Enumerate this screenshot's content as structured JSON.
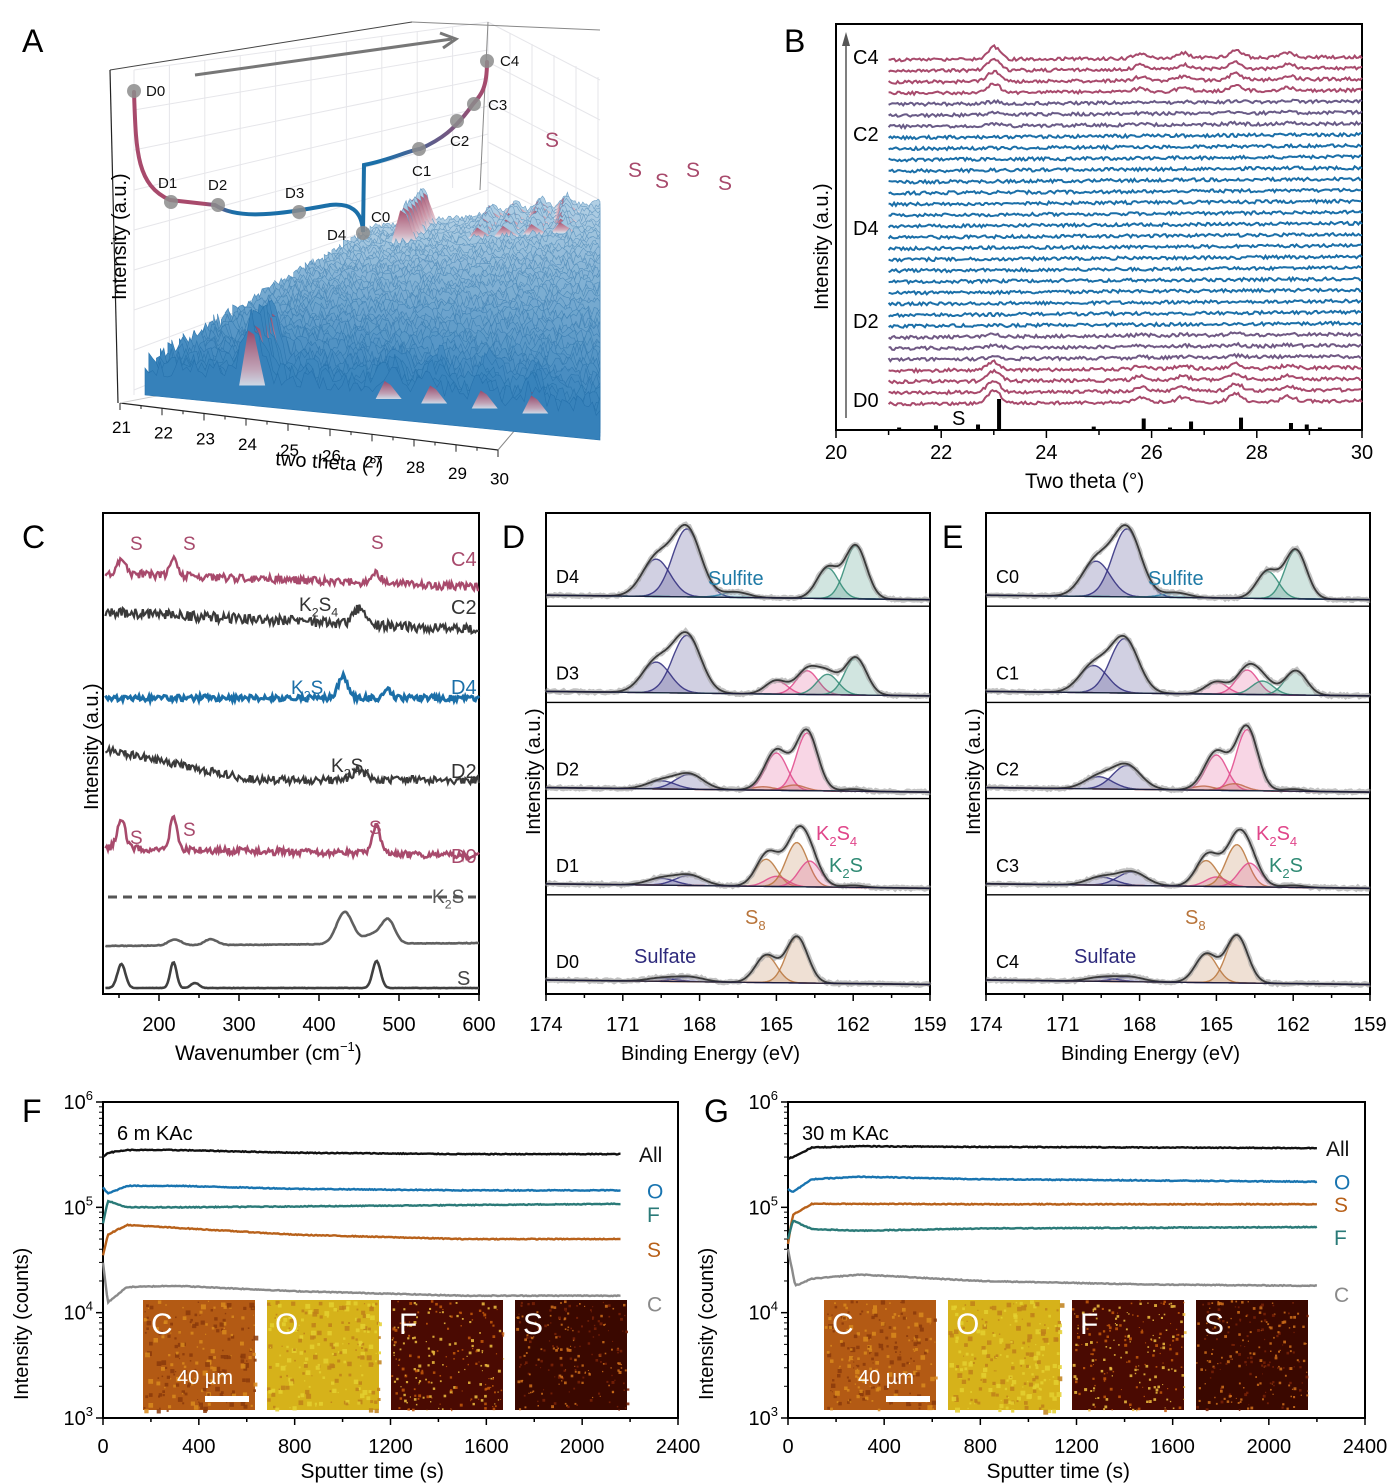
{
  "colors": {
    "charge_pink": "#a84a6c",
    "discharge_blue": "#1b6fa8",
    "sulfate_navy": "#2e2a7c",
    "sulfite_blue": "#1f7aa6",
    "k2s4_pink": "#e0468a",
    "k2s_green": "#2f8a74",
    "s8_orange": "#b8743a",
    "all_black": "#111111",
    "o_blue": "#1874b0",
    "f_teal": "#2a7a78",
    "s_orange": "#b8611a",
    "c_gray": "#8a8a8a"
  },
  "chart_data": [
    {
      "panel": "A",
      "type": "area",
      "title": "",
      "xlabel": "two theta (°)",
      "ylabel": "Intensity (a.u.)",
      "xlim": [
        21,
        30
      ],
      "x_ticks": [
        "21",
        "22",
        "23",
        "24",
        "25",
        "26",
        "27",
        "28",
        "29",
        "30"
      ],
      "inset_curve_points": [
        "D0",
        "D1",
        "D2",
        "D3",
        "D4",
        "C0",
        "C1",
        "C2",
        "C3",
        "C4"
      ],
      "peak_labels": [
        "S",
        "S",
        "S",
        "S",
        "S"
      ],
      "peak_positions": [
        23.1,
        25.8,
        26.7,
        27.7,
        28.7
      ],
      "arrow": "time progression"
    },
    {
      "panel": "B",
      "type": "line",
      "xlabel": "Two theta (°)",
      "ylabel": "Intensity (a.u.)",
      "xlim": [
        20,
        30
      ],
      "x_ticks": [
        "20",
        "22",
        "24",
        "26",
        "28",
        "30"
      ],
      "series_labels": [
        "D0",
        "D2",
        "D4",
        "C2",
        "C4"
      ],
      "stack_count": 32,
      "peak_positions": [
        23.0,
        25.8,
        26.6,
        27.6,
        28.6
      ],
      "reference": {
        "name": "S",
        "positions": [
          21.2,
          21.9,
          22.7,
          23.1,
          24.9,
          25.85,
          26.35,
          26.75,
          27.7,
          28.65,
          28.95,
          29.2
        ],
        "heights": [
          0.05,
          0.12,
          0.15,
          1.0,
          0.08,
          0.35,
          0.05,
          0.25,
          0.38,
          0.2,
          0.15,
          0.05
        ]
      }
    },
    {
      "panel": "C",
      "type": "line",
      "xlabel": "Wavenumber (cm⁻¹)",
      "ylabel": "Intensity (a.u.)",
      "xlim": [
        130,
        600
      ],
      "x_ticks": [
        "200",
        "300",
        "400",
        "500",
        "600"
      ],
      "series": [
        {
          "name": "C4",
          "color": "charge_pink",
          "peaks": [
            153,
            218,
            472
          ],
          "annotations": [
            "S",
            "S",
            "S"
          ]
        },
        {
          "name": "C2",
          "color": "gray",
          "peaks": [
            450
          ],
          "annotations": [
            "K2S4"
          ]
        },
        {
          "name": "D4",
          "color": "discharge_blue",
          "peaks": [
            430,
            487
          ],
          "annotations": [
            "K2S"
          ]
        },
        {
          "name": "D2",
          "color": "gray",
          "peaks": [
            450
          ],
          "annotations": [
            "K2S4"
          ]
        },
        {
          "name": "D0",
          "color": "charge_pink",
          "peaks": [
            153,
            218,
            472
          ],
          "annotations": [
            "S",
            "S",
            "S"
          ]
        },
        {
          "name": "K2S",
          "color": "gray",
          "peaks": [
            220,
            265,
            432,
            487
          ],
          "reference": true
        },
        {
          "name": "S",
          "color": "gray",
          "peaks": [
            153,
            218,
            245,
            472
          ],
          "reference": true
        }
      ]
    },
    {
      "panel": "D",
      "type": "line",
      "xlabel": "Binding Energy (eV)",
      "ylabel": "Intensity (a.u.)",
      "xlim": [
        174,
        159
      ],
      "x_ticks": [
        "174",
        "171",
        "168",
        "165",
        "162",
        "159"
      ],
      "annotations": [
        "Sulfite",
        "K2S4",
        "K2S",
        "S8",
        "Sulfate"
      ],
      "series": [
        {
          "name": "D4",
          "components": [
            {
              "species": "sulfate",
              "center": 169.7,
              "height": 0.55
            },
            {
              "species": "sulfate",
              "center": 168.5,
              "height": 1.0
            },
            {
              "species": "sulfite",
              "center": 166.6,
              "height": 0.08
            },
            {
              "species": "K2S",
              "center": 163.0,
              "height": 0.45
            },
            {
              "species": "K2S",
              "center": 161.9,
              "height": 0.78
            }
          ]
        },
        {
          "name": "D3",
          "components": [
            {
              "species": "sulfate",
              "center": 169.7,
              "height": 0.45
            },
            {
              "species": "sulfate",
              "center": 168.5,
              "height": 0.85
            },
            {
              "species": "K2S4",
              "center": 165.0,
              "height": 0.2
            },
            {
              "species": "K2S4",
              "center": 163.8,
              "height": 0.35
            },
            {
              "species": "K2S",
              "center": 163.0,
              "height": 0.3
            },
            {
              "species": "K2S",
              "center": 161.9,
              "height": 0.55
            }
          ]
        },
        {
          "name": "D2",
          "components": [
            {
              "species": "sulfate",
              "center": 169.5,
              "height": 0.12
            },
            {
              "species": "sulfate",
              "center": 168.4,
              "height": 0.22
            },
            {
              "species": "S8",
              "center": 165.5,
              "height": 0.05
            },
            {
              "species": "K2S4",
              "center": 165.0,
              "height": 0.55
            },
            {
              "species": "S8",
              "center": 164.3,
              "height": 0.08
            },
            {
              "species": "K2S4",
              "center": 163.8,
              "height": 0.85
            },
            {
              "species": "K2S",
              "center": 162.0,
              "height": 0.03
            }
          ]
        },
        {
          "name": "D1",
          "components": [
            {
              "species": "sulfate",
              "center": 169.5,
              "height": 0.1
            },
            {
              "species": "sulfate",
              "center": 168.4,
              "height": 0.15
            },
            {
              "species": "S8",
              "center": 165.4,
              "height": 0.4
            },
            {
              "species": "K2S4",
              "center": 165.0,
              "height": 0.15
            },
            {
              "species": "S8",
              "center": 164.2,
              "height": 0.65
            },
            {
              "species": "K2S4",
              "center": 163.7,
              "height": 0.38
            },
            {
              "species": "K2S",
              "center": 162.0,
              "height": 0.03
            }
          ]
        },
        {
          "name": "D0",
          "components": [
            {
              "species": "sulfate",
              "center": 169.5,
              "height": 0.05
            },
            {
              "species": "sulfate",
              "center": 168.4,
              "height": 0.07
            },
            {
              "species": "S8",
              "center": 165.4,
              "height": 0.4
            },
            {
              "species": "S8",
              "center": 164.2,
              "height": 0.68
            }
          ]
        }
      ]
    },
    {
      "panel": "E",
      "type": "line",
      "xlabel": "Binding Energy (eV)",
      "ylabel": "Intensity (a.u.)",
      "xlim": [
        174,
        159
      ],
      "x_ticks": [
        "174",
        "171",
        "168",
        "165",
        "162",
        "159"
      ],
      "annotations": [
        "Sulfite",
        "K2S4",
        "K2S",
        "S8",
        "Sulfate"
      ],
      "series": [
        {
          "name": "C0",
          "components": [
            {
              "species": "sulfate",
              "center": 169.7,
              "height": 0.52
            },
            {
              "species": "sulfate",
              "center": 168.5,
              "height": 1.0
            },
            {
              "species": "sulfite",
              "center": 166.6,
              "height": 0.07
            },
            {
              "species": "K2S",
              "center": 163.0,
              "height": 0.4
            },
            {
              "species": "K2S",
              "center": 161.9,
              "height": 0.72
            }
          ]
        },
        {
          "name": "C1",
          "components": [
            {
              "species": "sulfate",
              "center": 169.8,
              "height": 0.4
            },
            {
              "species": "sulfate",
              "center": 168.6,
              "height": 0.8
            },
            {
              "species": "K2S4",
              "center": 165.0,
              "height": 0.18
            },
            {
              "species": "K2S4",
              "center": 163.8,
              "height": 0.36
            },
            {
              "species": "K2S",
              "center": 163.2,
              "height": 0.2
            },
            {
              "species": "K2S",
              "center": 161.9,
              "height": 0.36
            }
          ]
        },
        {
          "name": "C2",
          "components": [
            {
              "species": "sulfate",
              "center": 169.6,
              "height": 0.18
            },
            {
              "species": "sulfate",
              "center": 168.5,
              "height": 0.35
            },
            {
              "species": "S8",
              "center": 165.5,
              "height": 0.06
            },
            {
              "species": "K2S4",
              "center": 165.0,
              "height": 0.52
            },
            {
              "species": "S8",
              "center": 164.3,
              "height": 0.1
            },
            {
              "species": "K2S4",
              "center": 163.8,
              "height": 0.9
            },
            {
              "species": "K2S",
              "center": 162.0,
              "height": 0.03
            }
          ]
        },
        {
          "name": "C3",
          "components": [
            {
              "species": "sulfate",
              "center": 169.5,
              "height": 0.12
            },
            {
              "species": "sulfate",
              "center": 168.3,
              "height": 0.2
            },
            {
              "species": "S8",
              "center": 165.4,
              "height": 0.38
            },
            {
              "species": "K2S4",
              "center": 165.0,
              "height": 0.14
            },
            {
              "species": "S8",
              "center": 164.2,
              "height": 0.62
            },
            {
              "species": "K2S4",
              "center": 163.7,
              "height": 0.35
            },
            {
              "species": "K2S",
              "center": 162.0,
              "height": 0.03
            }
          ]
        },
        {
          "name": "C4",
          "components": [
            {
              "species": "sulfate",
              "center": 169.5,
              "height": 0.06
            },
            {
              "species": "sulfate",
              "center": 168.4,
              "height": 0.07
            },
            {
              "species": "S8",
              "center": 165.4,
              "height": 0.42
            },
            {
              "species": "S8",
              "center": 164.2,
              "height": 0.7
            }
          ]
        }
      ]
    },
    {
      "panel": "F",
      "type": "line",
      "title": "6 m KAc",
      "xlabel": "Sputter time (s)",
      "ylabel": "Intensity (counts)",
      "xlim": [
        0,
        2400
      ],
      "ylim": [
        1000,
        1000000
      ],
      "yscale": "log",
      "x_ticks": [
        "0",
        "400",
        "800",
        "1200",
        "1600",
        "2000",
        "2400"
      ],
      "y_ticks": [
        "10³",
        "10⁴",
        "10⁵",
        "10⁶"
      ],
      "series": [
        {
          "name": "All",
          "x": [
            0,
            20,
            100,
            300,
            800,
            1500,
            2160
          ],
          "y": [
            300000,
            330000,
            350000,
            350000,
            330000,
            320000,
            320000
          ]
        },
        {
          "name": "O",
          "x": [
            0,
            20,
            100,
            300,
            800,
            1500,
            2160
          ],
          "y": [
            155000,
            135000,
            160000,
            160000,
            150000,
            145000,
            145000
          ]
        },
        {
          "name": "F",
          "x": [
            0,
            20,
            100,
            300,
            800,
            1500,
            2160
          ],
          "y": [
            70000,
            115000,
            100000,
            100000,
            102000,
            105000,
            108000
          ]
        },
        {
          "name": "S",
          "x": [
            0,
            20,
            100,
            300,
            800,
            1500,
            2160
          ],
          "y": [
            35000,
            55000,
            68000,
            64000,
            55000,
            50000,
            50000
          ]
        },
        {
          "name": "C",
          "x": [
            0,
            20,
            100,
            300,
            800,
            1500,
            2160
          ],
          "y": [
            30000,
            12500,
            17500,
            18000,
            16000,
            14500,
            14500
          ]
        }
      ],
      "inset_maps": [
        "C",
        "O",
        "F",
        "S"
      ],
      "scale_bar": "40 µm"
    },
    {
      "panel": "G",
      "type": "line",
      "title": "30 m KAc",
      "xlabel": "Sputter time (s)",
      "ylabel": "Intensity (counts)",
      "xlim": [
        0,
        2400
      ],
      "ylim": [
        1000,
        1000000
      ],
      "yscale": "log",
      "x_ticks": [
        "0",
        "400",
        "800",
        "1200",
        "1600",
        "2000",
        "2400"
      ],
      "y_ticks": [
        "10³",
        "10⁴",
        "10⁵",
        "10⁶"
      ],
      "series": [
        {
          "name": "All",
          "x": [
            0,
            20,
            100,
            300,
            800,
            1500,
            2200
          ],
          "y": [
            290000,
            300000,
            370000,
            380000,
            375000,
            370000,
            365000
          ]
        },
        {
          "name": "O",
          "x": [
            0,
            20,
            100,
            300,
            800,
            1500,
            2200
          ],
          "y": [
            150000,
            140000,
            185000,
            195000,
            185000,
            180000,
            175000
          ]
        },
        {
          "name": "S",
          "x": [
            0,
            20,
            100,
            300,
            800,
            1500,
            2200
          ],
          "y": [
            45000,
            85000,
            108000,
            108000,
            107000,
            107000,
            107000
          ]
        },
        {
          "name": "F",
          "x": [
            0,
            20,
            100,
            300,
            800,
            1500,
            2200
          ],
          "y": [
            50000,
            75000,
            62000,
            60000,
            63000,
            64000,
            65000
          ]
        },
        {
          "name": "C",
          "x": [
            0,
            30,
            100,
            300,
            800,
            1500,
            2200
          ],
          "y": [
            40000,
            18000,
            21000,
            23000,
            20000,
            18500,
            18000
          ]
        }
      ],
      "inset_maps": [
        "C",
        "O",
        "F",
        "S"
      ],
      "scale_bar": "40 µm"
    }
  ],
  "labels": {
    "panel_A": "A",
    "panel_B": "B",
    "panel_C": "C",
    "panel_D": "D",
    "panel_E": "E",
    "panel_F": "F",
    "panel_G": "G",
    "a_ylabel": "Intensity (a.u.)",
    "a_xlabel": "two theta (°)",
    "a_points": [
      "D0",
      "D1",
      "D2",
      "D3",
      "D4",
      "C0",
      "C1",
      "C2",
      "C3",
      "C4"
    ],
    "a_S": "S",
    "b_xlabel": "Two theta (°)",
    "b_ylabel": "Intensity (a.u.)",
    "b_series": [
      "C4",
      "C2",
      "D4",
      "D2",
      "D0"
    ],
    "b_ref": "S",
    "c_xlabel_main": "Wavenumber (cm",
    "c_xlabel_sup": "−1",
    "c_xlabel_end": ")",
    "c_ylabel": "Intensity (a.u.)",
    "xps_xlabel": "Binding Energy (eV)",
    "xps_ylabel": "Intensity (a.u.)",
    "sulfite": "Sulfite",
    "sulfate": "Sulfate",
    "k": "K",
    "s": "S",
    "sub2": "2",
    "sub4": "4",
    "sub8": "8",
    "tof_xlabel": "Sputter time (s)",
    "tof_ylabel": "Intensity (counts)",
    "scale_bar": "40 µm",
    "ten": "10"
  }
}
